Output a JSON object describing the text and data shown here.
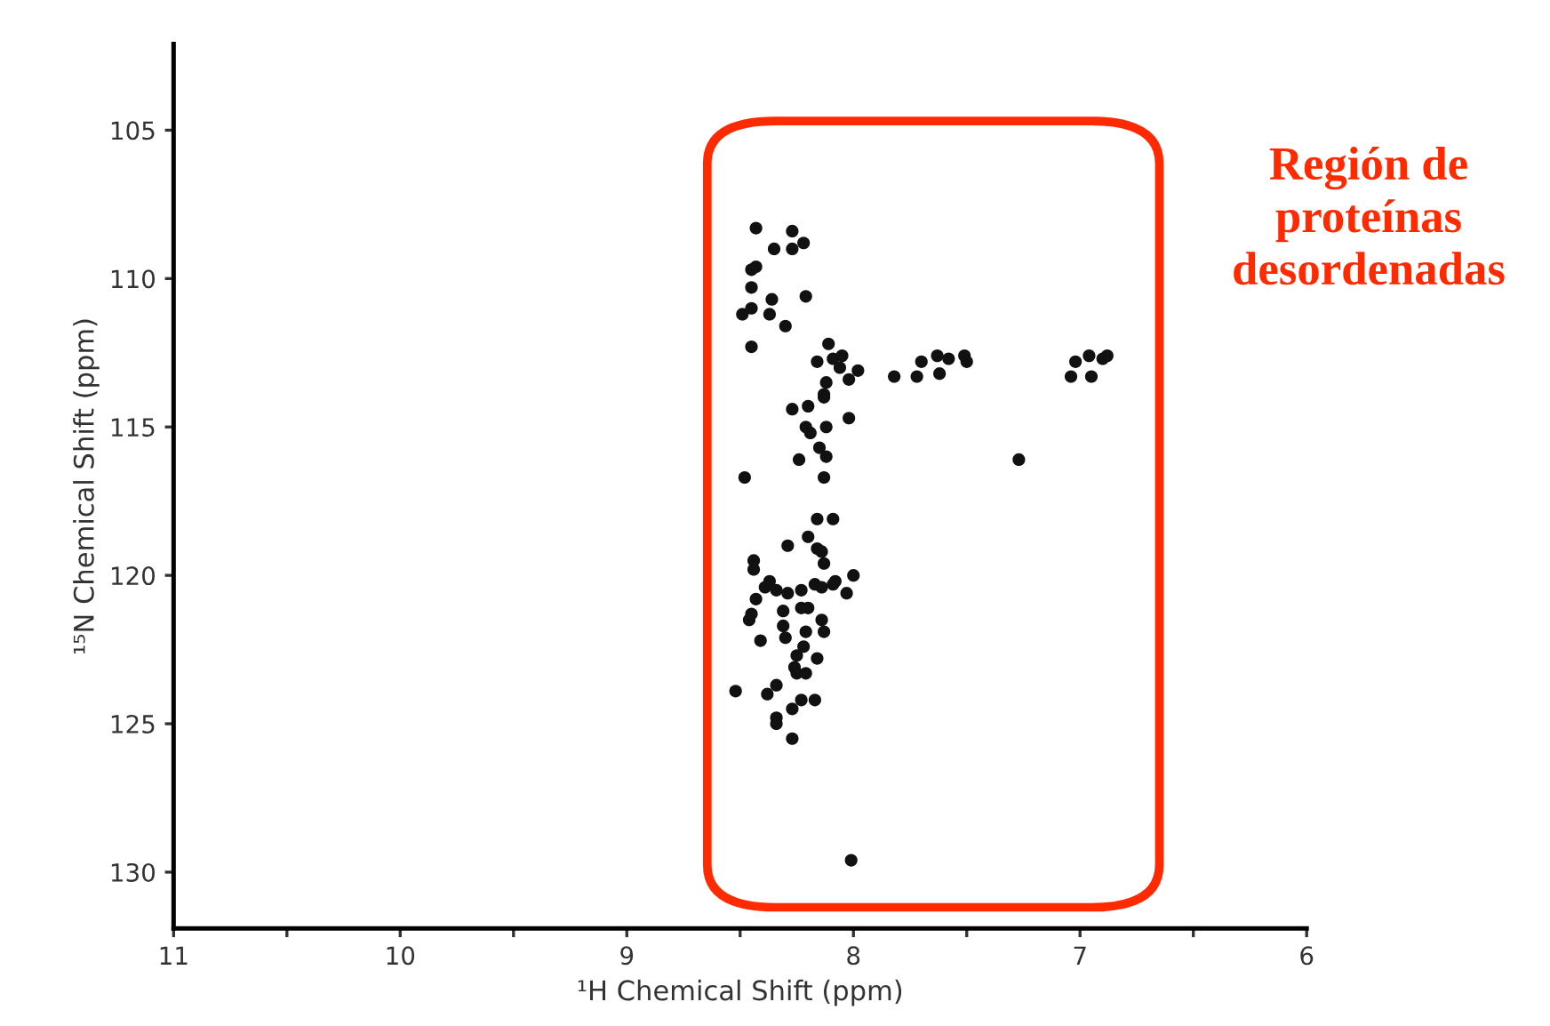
{
  "chart_data": {
    "type": "scatter",
    "xlabel": "¹H Chemical Shift (ppm)",
    "ylabel": "¹⁵N Chemical Shift (ppm)",
    "annotations": [
      "Región de\nproteínas\ndesordenadas"
    ],
    "xlim": [
      11,
      6
    ],
    "ylim": [
      131.9,
      102.1
    ],
    "xticks": [
      11,
      {
        "value": 10.5,
        "label": null
      },
      10,
      {
        "value": 9.5,
        "label": null
      },
      9,
      {
        "value": 8.5,
        "label": null
      },
      8,
      {
        "value": 7.5,
        "label": null
      },
      7,
      {
        "value": 6.5,
        "label": null
      },
      6
    ],
    "yticks": [
      105,
      110,
      115,
      120,
      125,
      130
    ],
    "marker": "circle",
    "grid": false,
    "legend": false,
    "series": [
      {
        "color": "#111111",
        "x": [
          8.43,
          8.27,
          8.35,
          8.27,
          8.22,
          8.45,
          8.43,
          8.45,
          8.36,
          8.21,
          8.49,
          8.45,
          8.37,
          8.3,
          8.45,
          8.11,
          8.16,
          8.09,
          8.05,
          8.06,
          8.02,
          7.98,
          8.12,
          8.13,
          8.27,
          8.2,
          8.13,
          8.02,
          8.21,
          8.19,
          8.12,
          8.15,
          8.12,
          8.24,
          8.48,
          8.13,
          8.16,
          8.09,
          8.29,
          8.2,
          8.16,
          8.13,
          8.44,
          8.44,
          8.0,
          8.14,
          8.37,
          8.39,
          8.43,
          8.45,
          8.46,
          8.34,
          8.29,
          8.23,
          8.17,
          8.14,
          8.09,
          8.08,
          8.03,
          8.31,
          8.23,
          8.2,
          8.14,
          8.31,
          8.3,
          8.41,
          8.21,
          8.13,
          8.22,
          8.25,
          8.16,
          8.26,
          8.25,
          8.21,
          8.52,
          8.38,
          8.34,
          8.23,
          8.17,
          8.34,
          8.27,
          8.34,
          8.27,
          7.82,
          7.72,
          7.62,
          7.7,
          7.63,
          7.58,
          7.51,
          7.5,
          7.04,
          6.95,
          7.02,
          6.96,
          6.9,
          6.88,
          7.27,
          8.01
        ],
        "values": [
          108.3,
          108.4,
          109.0,
          109.0,
          108.8,
          109.7,
          109.6,
          110.3,
          110.7,
          110.6,
          111.2,
          111.0,
          111.2,
          111.6,
          112.3,
          112.2,
          112.8,
          112.7,
          112.6,
          113.0,
          113.4,
          113.1,
          113.5,
          113.9,
          114.4,
          114.3,
          114.0,
          114.7,
          115.0,
          115.2,
          115.0,
          115.7,
          116.0,
          116.1,
          116.7,
          116.7,
          118.1,
          118.1,
          119.0,
          118.7,
          119.1,
          119.6,
          119.5,
          119.8,
          120.0,
          119.2,
          120.2,
          120.4,
          120.8,
          121.3,
          121.5,
          120.5,
          120.6,
          120.5,
          120.3,
          120.4,
          120.3,
          120.2,
          120.6,
          121.2,
          121.1,
          121.1,
          121.5,
          121.7,
          122.1,
          122.2,
          121.9,
          121.9,
          122.4,
          122.7,
          122.8,
          123.1,
          123.3,
          123.3,
          123.9,
          124.0,
          123.7,
          124.2,
          124.2,
          124.8,
          124.5,
          125.0,
          125.5,
          113.3,
          113.3,
          113.2,
          112.8,
          112.6,
          112.7,
          112.6,
          112.8,
          113.3,
          113.3,
          112.8,
          112.6,
          112.7,
          112.6,
          116.1,
          129.6
        ]
      }
    ]
  }
}
